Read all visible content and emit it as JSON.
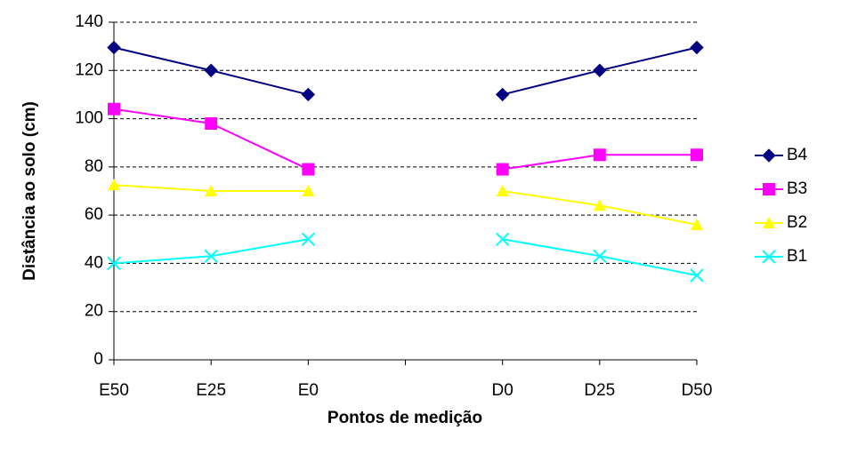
{
  "chart_data": {
    "type": "line",
    "x_label": "Pontos de medição",
    "y_label": "Distância ao solo (cm)",
    "categories": [
      "E50",
      "E25",
      "E0",
      null,
      "D0",
      "D25",
      "D50"
    ],
    "series": [
      {
        "name": "B4",
        "color": "#000080",
        "marker": "diamond",
        "values": [
          129.5,
          120,
          110,
          null,
          110,
          120,
          129.5
        ]
      },
      {
        "name": "B3",
        "color": "#ff00ff",
        "marker": "square",
        "values": [
          104,
          98,
          79,
          null,
          79,
          85,
          85
        ]
      },
      {
        "name": "B2",
        "color": "#ffff00",
        "marker": "triangle",
        "values": [
          72.5,
          70,
          70,
          null,
          70,
          64,
          56
        ]
      },
      {
        "name": "B1",
        "color": "#00ffff",
        "marker": "x",
        "values": [
          40,
          43,
          50,
          null,
          50,
          43,
          35
        ]
      }
    ],
    "ylim": [
      0,
      140
    ],
    "yticks": [
      0,
      20,
      40,
      60,
      80,
      100,
      120,
      140
    ],
    "grid": true,
    "legend": "right"
  }
}
